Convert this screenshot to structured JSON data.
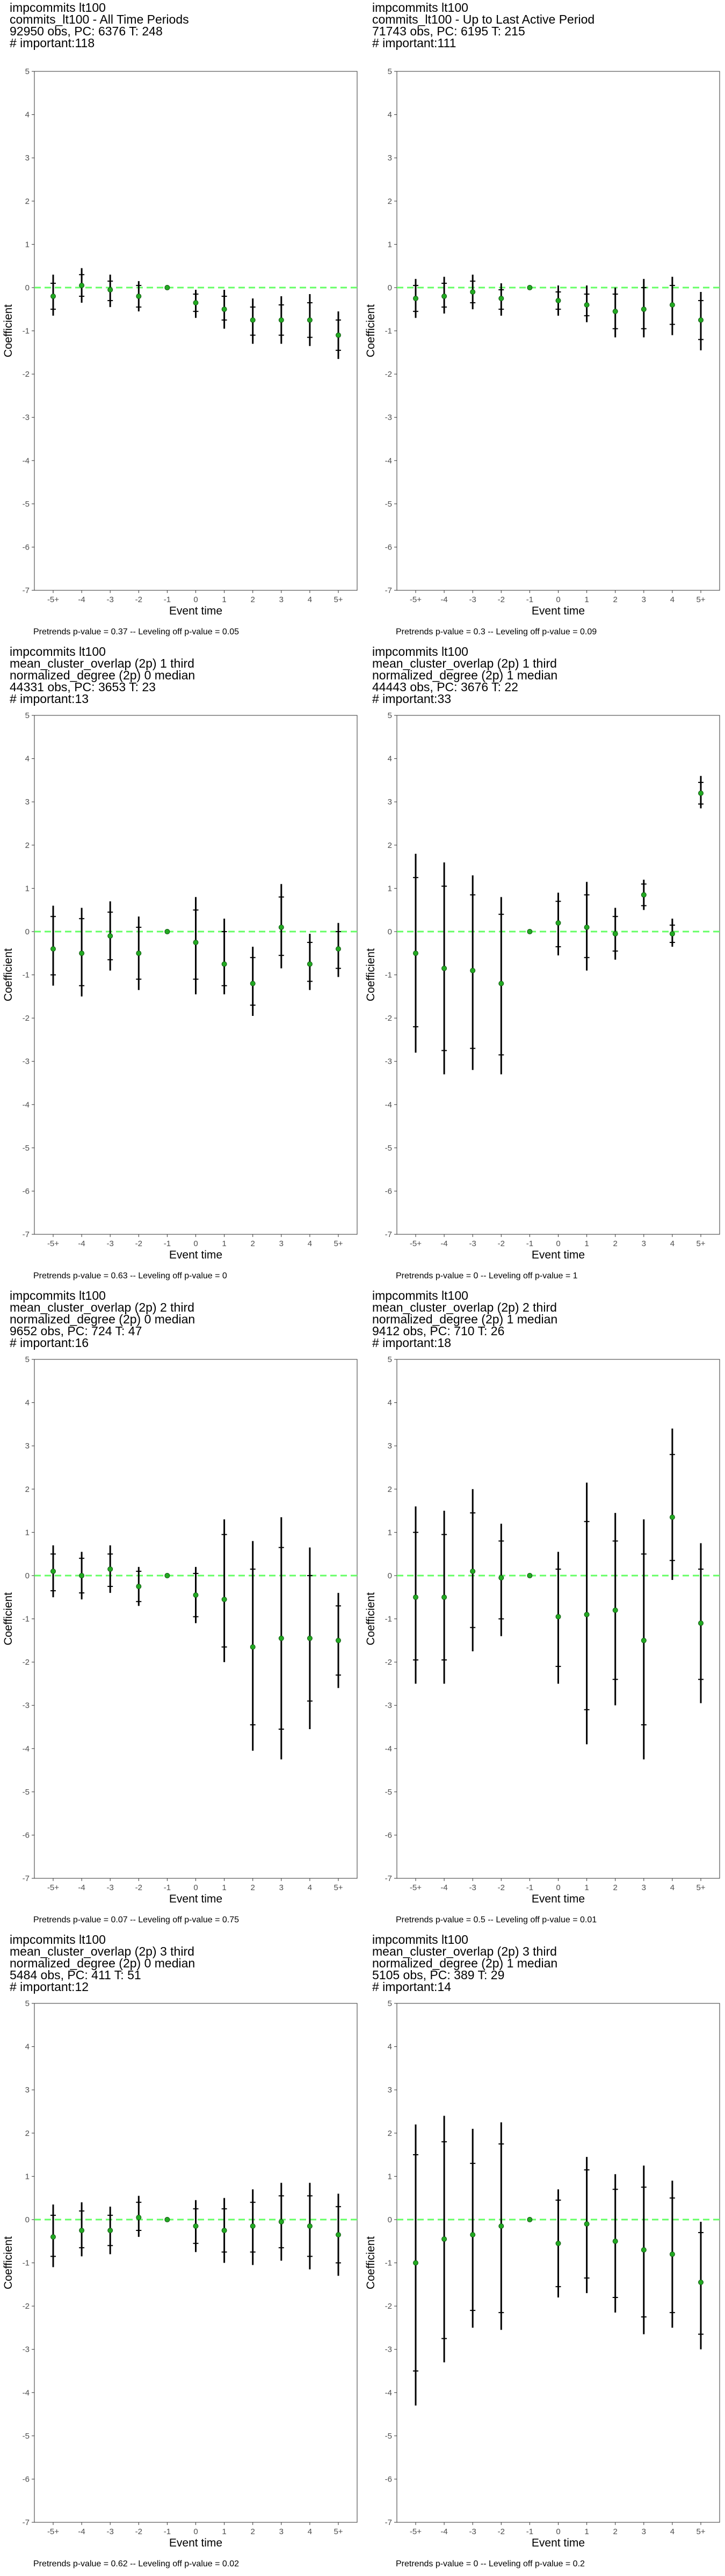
{
  "chart_data": [
    {
      "type": "scatter",
      "title_lines": [
        "impcommits lt100",
        "commits_lt100 - All Time Periods",
        "92950 obs, PC: 6376 T: 248",
        "# important:118"
      ],
      "xlabel": "Event time",
      "ylabel": "Coefficient",
      "categories": [
        "-5+",
        "-4",
        "-3",
        "-2",
        "-1",
        "0",
        "1",
        "2",
        "3",
        "4",
        "5+"
      ],
      "ylim": [
        -7,
        5
      ],
      "yticks": [
        -7,
        -6,
        -5,
        -4,
        -3,
        -2,
        -1,
        0,
        1,
        2,
        3,
        4,
        5
      ],
      "reference_line": 0,
      "values": [
        -0.2,
        0.05,
        -0.05,
        -0.2,
        0,
        -0.35,
        -0.5,
        -0.75,
        -0.75,
        -0.75,
        -1.1
      ],
      "ci_outer": [
        [
          -0.65,
          0.3
        ],
        [
          -0.35,
          0.45
        ],
        [
          -0.45,
          0.3
        ],
        [
          -0.55,
          0.15
        ],
        [
          0,
          0
        ],
        [
          -0.7,
          -0.05
        ],
        [
          -0.95,
          -0.05
        ],
        [
          -1.3,
          -0.25
        ],
        [
          -1.3,
          -0.2
        ],
        [
          -1.35,
          -0.15
        ],
        [
          -1.65,
          -0.55
        ]
      ],
      "ci_inner": [
        [
          -0.5,
          0.1
        ],
        [
          -0.2,
          0.3
        ],
        [
          -0.3,
          0.15
        ],
        [
          -0.45,
          0.05
        ],
        [
          0,
          0
        ],
        [
          -0.55,
          -0.15
        ],
        [
          -0.75,
          -0.2
        ],
        [
          -1.1,
          -0.45
        ],
        [
          -1.1,
          -0.4
        ],
        [
          -1.15,
          -0.35
        ],
        [
          -1.45,
          -0.75
        ]
      ],
      "caption": "Pretrends p-value = 0.37 -- Leveling off p-value = 0.05"
    },
    {
      "type": "scatter",
      "title_lines": [
        "impcommits lt100",
        "commits_lt100 - Up to Last Active Period",
        "71743 obs, PC: 6195 T: 215",
        "# important:111"
      ],
      "xlabel": "Event time",
      "ylabel": "Coefficient",
      "categories": [
        "-5+",
        "-4",
        "-3",
        "-2",
        "-1",
        "0",
        "1",
        "2",
        "3",
        "4",
        "5+"
      ],
      "ylim": [
        -7,
        5
      ],
      "yticks": [
        -7,
        -6,
        -5,
        -4,
        -3,
        -2,
        -1,
        0,
        1,
        2,
        3,
        4,
        5
      ],
      "reference_line": 0,
      "values": [
        -0.25,
        -0.2,
        -0.1,
        -0.25,
        0,
        -0.3,
        -0.4,
        -0.55,
        -0.5,
        -0.4,
        -0.75
      ],
      "ci_outer": [
        [
          -0.7,
          0.2
        ],
        [
          -0.6,
          0.25
        ],
        [
          -0.5,
          0.3
        ],
        [
          -0.65,
          0.1
        ],
        [
          0,
          0
        ],
        [
          -0.65,
          0.05
        ],
        [
          -0.8,
          0.05
        ],
        [
          -1.15,
          0.0
        ],
        [
          -1.15,
          0.2
        ],
        [
          -1.1,
          0.25
        ],
        [
          -1.45,
          -0.1
        ]
      ],
      "ci_inner": [
        [
          -0.55,
          0.05
        ],
        [
          -0.45,
          0.1
        ],
        [
          -0.35,
          0.15
        ],
        [
          -0.5,
          -0.05
        ],
        [
          0,
          0
        ],
        [
          -0.5,
          -0.1
        ],
        [
          -0.65,
          -0.15
        ],
        [
          -0.95,
          -0.15
        ],
        [
          -0.95,
          0.0
        ],
        [
          -0.85,
          0.05
        ],
        [
          -1.2,
          -0.3
        ]
      ],
      "caption": "Pretrends p-value = 0.3 -- Leveling off p-value = 0.09"
    },
    {
      "type": "scatter",
      "title_lines": [
        "impcommits lt100",
        "mean_cluster_overlap (2p) 1 third",
        "normalized_degree (2p) 0 median",
        "44331 obs, PC: 3653 T: 23",
        "# important:13"
      ],
      "xlabel": "Event time",
      "ylabel": "Coefficient",
      "categories": [
        "-5+",
        "-4",
        "-3",
        "-2",
        "-1",
        "0",
        "1",
        "2",
        "3",
        "4",
        "5+"
      ],
      "ylim": [
        -7,
        5
      ],
      "yticks": [
        -7,
        -6,
        -5,
        -4,
        -3,
        -2,
        -1,
        0,
        1,
        2,
        3,
        4,
        5
      ],
      "reference_line": 0,
      "values": [
        -0.4,
        -0.5,
        -0.1,
        -0.5,
        0,
        -0.25,
        -0.75,
        -1.2,
        0.1,
        -0.75,
        -0.4
      ],
      "ci_outer": [
        [
          -1.25,
          0.6
        ],
        [
          -1.5,
          0.55
        ],
        [
          -0.9,
          0.7
        ],
        [
          -1.35,
          0.35
        ],
        [
          0,
          0
        ],
        [
          -1.45,
          0.8
        ],
        [
          -1.45,
          0.3
        ],
        [
          -1.95,
          -0.35
        ],
        [
          -0.85,
          1.1
        ],
        [
          -1.35,
          -0.05
        ],
        [
          -1.05,
          0.2
        ]
      ],
      "ci_inner": [
        [
          -1.0,
          0.35
        ],
        [
          -1.25,
          0.3
        ],
        [
          -0.65,
          0.45
        ],
        [
          -1.1,
          0.1
        ],
        [
          0,
          0
        ],
        [
          -1.1,
          0.5
        ],
        [
          -1.25,
          0.0
        ],
        [
          -1.7,
          -0.6
        ],
        [
          -0.55,
          0.8
        ],
        [
          -1.15,
          -0.25
        ],
        [
          -0.85,
          0.0
        ]
      ],
      "caption": "Pretrends p-value = 0.63 -- Leveling off p-value = 0"
    },
    {
      "type": "scatter",
      "title_lines": [
        "impcommits lt100",
        "mean_cluster_overlap (2p) 1 third",
        "normalized_degree (2p) 1 median",
        "44443 obs, PC: 3676 T: 22",
        "# important:33"
      ],
      "xlabel": "Event time",
      "ylabel": "Coefficient",
      "categories": [
        "-5+",
        "-4",
        "-3",
        "-2",
        "-1",
        "0",
        "1",
        "2",
        "3",
        "4",
        "5+"
      ],
      "ylim": [
        -7,
        5
      ],
      "yticks": [
        -7,
        -6,
        -5,
        -4,
        -3,
        -2,
        -1,
        0,
        1,
        2,
        3,
        4,
        5
      ],
      "reference_line": 0,
      "values": [
        -0.5,
        -0.85,
        -0.9,
        -1.2,
        0,
        0.2,
        0.1,
        -0.05,
        0.85,
        -0.05,
        3.2
      ],
      "ci_outer": [
        [
          -2.8,
          1.8
        ],
        [
          -3.3,
          1.6
        ],
        [
          -3.2,
          1.3
        ],
        [
          -3.3,
          0.8
        ],
        [
          0,
          0
        ],
        [
          -0.55,
          0.9
        ],
        [
          -0.9,
          1.15
        ],
        [
          -0.65,
          0.55
        ],
        [
          0.5,
          1.2
        ],
        [
          -0.35,
          0.3
        ],
        [
          2.85,
          3.6
        ]
      ],
      "ci_inner": [
        [
          -2.2,
          1.25
        ],
        [
          -2.75,
          1.05
        ],
        [
          -2.7,
          0.85
        ],
        [
          -2.85,
          0.4
        ],
        [
          0,
          0
        ],
        [
          -0.35,
          0.7
        ],
        [
          -0.6,
          0.85
        ],
        [
          -0.45,
          0.35
        ],
        [
          0.6,
          1.1
        ],
        [
          -0.25,
          0.15
        ],
        [
          2.95,
          3.45
        ]
      ],
      "caption": "Pretrends p-value = 0 -- Leveling off p-value = 1"
    },
    {
      "type": "scatter",
      "title_lines": [
        "impcommits lt100",
        "mean_cluster_overlap (2p) 2 third",
        "normalized_degree (2p) 0 median",
        "9652 obs, PC: 724 T: 47",
        "# important:16"
      ],
      "xlabel": "Event time",
      "ylabel": "Coefficient",
      "categories": [
        "-5+",
        "-4",
        "-3",
        "-2",
        "-1",
        "0",
        "1",
        "2",
        "3",
        "4",
        "5+"
      ],
      "ylim": [
        -7,
        5
      ],
      "yticks": [
        -7,
        -6,
        -5,
        -4,
        -3,
        -2,
        -1,
        0,
        1,
        2,
        3,
        4,
        5
      ],
      "reference_line": 0,
      "values": [
        0.1,
        0.0,
        0.15,
        -0.25,
        0,
        -0.45,
        -0.55,
        -1.65,
        -1.45,
        -1.45,
        -1.5
      ],
      "ci_outer": [
        [
          -0.5,
          0.7
        ],
        [
          -0.55,
          0.55
        ],
        [
          -0.4,
          0.7
        ],
        [
          -0.7,
          0.2
        ],
        [
          0,
          0
        ],
        [
          -1.1,
          0.2
        ],
        [
          -2.0,
          1.3
        ],
        [
          -4.05,
          0.8
        ],
        [
          -4.25,
          1.35
        ],
        [
          -3.55,
          0.65
        ],
        [
          -2.6,
          -0.4
        ]
      ],
      "ci_inner": [
        [
          -0.35,
          0.5
        ],
        [
          -0.4,
          0.4
        ],
        [
          -0.25,
          0.5
        ],
        [
          -0.6,
          0.1
        ],
        [
          0,
          0
        ],
        [
          -0.95,
          0.05
        ],
        [
          -1.65,
          0.95
        ],
        [
          -3.45,
          0.15
        ],
        [
          -3.55,
          0.65
        ],
        [
          -2.9,
          0.0
        ],
        [
          -2.3,
          -0.7
        ]
      ],
      "caption": "Pretrends p-value = 0.07 -- Leveling off p-value = 0.75"
    },
    {
      "type": "scatter",
      "title_lines": [
        "impcommits lt100",
        "mean_cluster_overlap (2p) 2 third",
        "normalized_degree (2p) 1 median",
        "9412 obs, PC: 710 T: 26",
        "# important:18"
      ],
      "xlabel": "Event time",
      "ylabel": "Coefficient",
      "categories": [
        "-5+",
        "-4",
        "-3",
        "-2",
        "-1",
        "0",
        "1",
        "2",
        "3",
        "4",
        "5+"
      ],
      "ylim": [
        -7,
        5
      ],
      "yticks": [
        -7,
        -6,
        -5,
        -4,
        -3,
        -2,
        -1,
        0,
        1,
        2,
        3,
        4,
        5
      ],
      "reference_line": 0,
      "values": [
        -0.5,
        -0.5,
        0.1,
        -0.05,
        0,
        -0.95,
        -0.9,
        -0.8,
        -1.5,
        1.35,
        -1.1
      ],
      "ci_outer": [
        [
          -2.5,
          1.6
        ],
        [
          -2.5,
          1.5
        ],
        [
          -1.75,
          2.0
        ],
        [
          -1.4,
          1.2
        ],
        [
          0,
          0
        ],
        [
          -2.5,
          0.55
        ],
        [
          -3.9,
          2.15
        ],
        [
          -3.0,
          1.45
        ],
        [
          -4.25,
          1.3
        ],
        [
          -0.1,
          3.4
        ],
        [
          -2.95,
          0.75
        ]
      ],
      "ci_inner": [
        [
          -1.95,
          1.0
        ],
        [
          -1.95,
          0.95
        ],
        [
          -1.2,
          1.45
        ],
        [
          -1.0,
          0.8
        ],
        [
          0,
          0
        ],
        [
          -2.1,
          0.15
        ],
        [
          -3.1,
          1.25
        ],
        [
          -2.4,
          0.8
        ],
        [
          -3.45,
          0.5
        ],
        [
          0.35,
          2.8
        ],
        [
          -2.4,
          0.15
        ]
      ],
      "caption": "Pretrends p-value = 0.5 -- Leveling off p-value = 0.01"
    },
    {
      "type": "scatter",
      "title_lines": [
        "impcommits lt100",
        "mean_cluster_overlap (2p) 3 third",
        "normalized_degree (2p) 0 median",
        "5484 obs, PC: 411 T: 51",
        "# important:12"
      ],
      "xlabel": "Event time",
      "ylabel": "Coefficient",
      "categories": [
        "-5+",
        "-4",
        "-3",
        "-2",
        "-1",
        "0",
        "1",
        "2",
        "3",
        "4",
        "5+"
      ],
      "ylim": [
        -7,
        5
      ],
      "yticks": [
        -7,
        -6,
        -5,
        -4,
        -3,
        -2,
        -1,
        0,
        1,
        2,
        3,
        4,
        5
      ],
      "reference_line": 0,
      "values": [
        -0.4,
        -0.25,
        -0.25,
        0.05,
        0,
        -0.15,
        -0.25,
        -0.15,
        -0.05,
        -0.15,
        -0.35
      ],
      "ci_outer": [
        [
          -1.1,
          0.35
        ],
        [
          -0.85,
          0.4
        ],
        [
          -0.8,
          0.3
        ],
        [
          -0.4,
          0.55
        ],
        [
          0,
          0
        ],
        [
          -0.75,
          0.45
        ],
        [
          -1.0,
          0.5
        ],
        [
          -1.05,
          0.7
        ],
        [
          -0.95,
          0.85
        ],
        [
          -1.15,
          0.85
        ],
        [
          -1.3,
          0.6
        ]
      ],
      "ci_inner": [
        [
          -0.85,
          0.1
        ],
        [
          -0.65,
          0.2
        ],
        [
          -0.6,
          0.1
        ],
        [
          -0.25,
          0.4
        ],
        [
          0,
          0
        ],
        [
          -0.55,
          0.25
        ],
        [
          -0.75,
          0.25
        ],
        [
          -0.75,
          0.4
        ],
        [
          -0.65,
          0.55
        ],
        [
          -0.85,
          0.55
        ],
        [
          -1.0,
          0.3
        ]
      ],
      "caption": "Pretrends p-value = 0.62 -- Leveling off p-value = 0.02"
    },
    {
      "type": "scatter",
      "title_lines": [
        "impcommits lt100",
        "mean_cluster_overlap (2p) 3 third",
        "normalized_degree (2p) 1 median",
        "5105 obs, PC: 389 T: 29",
        "# important:14"
      ],
      "xlabel": "Event time",
      "ylabel": "Coefficient",
      "categories": [
        "-5+",
        "-4",
        "-3",
        "-2",
        "-1",
        "0",
        "1",
        "2",
        "3",
        "4",
        "5+"
      ],
      "ylim": [
        -7,
        5
      ],
      "yticks": [
        -7,
        -6,
        -5,
        -4,
        -3,
        -2,
        -1,
        0,
        1,
        2,
        3,
        4,
        5
      ],
      "reference_line": 0,
      "values": [
        -1.0,
        -0.45,
        -0.35,
        -0.15,
        0,
        -0.55,
        -0.1,
        -0.5,
        -0.7,
        -0.8,
        -1.45
      ],
      "ci_outer": [
        [
          -4.3,
          2.2
        ],
        [
          -3.3,
          2.4
        ],
        [
          -2.5,
          2.1
        ],
        [
          -2.55,
          2.25
        ],
        [
          0,
          0
        ],
        [
          -1.8,
          0.7
        ],
        [
          -1.7,
          1.45
        ],
        [
          -2.15,
          1.05
        ],
        [
          -2.65,
          1.25
        ],
        [
          -2.5,
          0.9
        ],
        [
          -3.0,
          -0.05
        ]
      ],
      "ci_inner": [
        [
          -3.5,
          1.5
        ],
        [
          -2.75,
          1.8
        ],
        [
          -2.1,
          1.3
        ],
        [
          -2.15,
          1.75
        ],
        [
          0,
          0
        ],
        [
          -1.55,
          0.45
        ],
        [
          -1.35,
          1.15
        ],
        [
          -1.8,
          0.7
        ],
        [
          -2.25,
          0.75
        ],
        [
          -2.15,
          0.5
        ],
        [
          -2.65,
          -0.3
        ]
      ],
      "caption": "Pretrends p-value = 0 -- Leveling off p-value = 0.2"
    }
  ]
}
